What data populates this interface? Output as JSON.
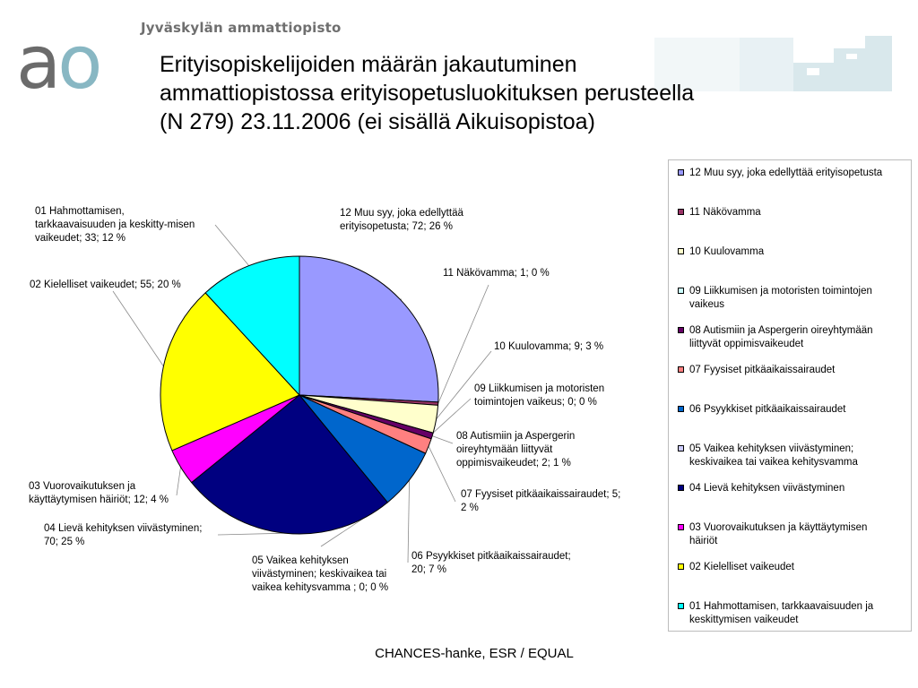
{
  "header": {
    "org_name": "Jyväskylän ammattiopisto",
    "logo_text": "ao",
    "title_lines": [
      "Erityisopiskelijoiden määrän jakautuminen",
      "ammattiopistossa erityisopetusluokituksen perusteella",
      "(N 279) 23.11.2006 (ei sisällä Aikuisopistoa)"
    ]
  },
  "footer": {
    "text": "CHANCES-hanke, ESR / EQUAL"
  },
  "colors": {
    "logo_a": "#6b6b6b",
    "logo_o": "#88b7c3",
    "deco": "#d9e8ec"
  },
  "chart_data": {
    "type": "pie",
    "title": "Erityisopiskelijoiden määrän jakautuminen ammattiopistossa erityisopetusluokituksen perusteella (N 279) 23.11.2006 (ei sisällä Aikuisopistoa)",
    "total": 279,
    "legend_position": "right",
    "slices": [
      {
        "name": "12 Muu syy, joka edellyttää erityisopetusta",
        "value": 72,
        "percent": 26,
        "color": "#9999ff",
        "label_lines": [
          "12 Muu syy, joka edellyttää",
          "erityisopetusta; 72; 26 %"
        ]
      },
      {
        "name": "11 Näkövamma",
        "value": 1,
        "percent": 0,
        "color": "#993366",
        "label_lines": [
          "11 Näkövamma; 1; 0 %"
        ]
      },
      {
        "name": "10 Kuulovamma",
        "value": 9,
        "percent": 3,
        "color": "#ffffcc",
        "label_lines": [
          "10 Kuulovamma; 9; 3 %"
        ]
      },
      {
        "name": "09 Liikkumisen ja motoristen toimintojen vaikeus",
        "value": 0,
        "percent": 0,
        "color": "#ccffff",
        "legend_lines": [
          "09 Liikkumisen ja motoristen toimintojen",
          "vaikeus"
        ],
        "label_lines": [
          "09 Liikkumisen ja motoristen",
          "toimintojen vaikeus; 0; 0 %"
        ]
      },
      {
        "name": "08 Autismiin ja Aspergerin oireyhtymään liittyvät oppimisvaikeudet",
        "value": 2,
        "percent": 1,
        "color": "#660066",
        "legend_lines": [
          "08 Autismiin ja Aspergerin oireyhtymään",
          "liittyvät oppimisvaikeudet"
        ],
        "label_lines": [
          "08 Autismiin ja Aspergerin",
          "oireyhtymään liittyvät",
          "oppimisvaikeudet; 2; 1 %"
        ]
      },
      {
        "name": "07 Fyysiset pitkäaikaissairaudet",
        "value": 5,
        "percent": 2,
        "color": "#ff8080",
        "label_lines": [
          "07 Fyysiset pitkäaikaissairaudet; 5;",
          "2 %"
        ]
      },
      {
        "name": "06 Psyykkiset pitkäaikaissairaudet",
        "value": 20,
        "percent": 7,
        "color": "#0066cc",
        "label_lines": [
          "06 Psyykkiset pitkäaikaissairaudet;",
          "20; 7 %"
        ]
      },
      {
        "name": "05 Vaikea kehityksen viivästyminen; keskivaikea tai vaikea kehitysvamma",
        "value": 0,
        "percent": 0,
        "color": "#ccccff",
        "legend_lines": [
          "05 Vaikea kehityksen viivästyminen;",
          "keskivaikea tai vaikea kehitysvamma"
        ],
        "label_lines": [
          "05 Vaikea kehityksen",
          "viivästyminen; keskivaikea tai",
          "vaikea kehitysvamma ; 0; 0 %"
        ]
      },
      {
        "name": "04 Lievä kehityksen viivästyminen",
        "value": 70,
        "percent": 25,
        "color": "#000080",
        "label_lines": [
          "04 Lievä kehityksen viivästyminen;",
          "70; 25 %"
        ]
      },
      {
        "name": "03 Vuorovaikutuksen ja käyttäytymisen häiriöt",
        "value": 12,
        "percent": 4,
        "color": "#ff00ff",
        "legend_lines": [
          "03 Vuorovaikutuksen ja käyttäytymisen",
          "häiriöt"
        ],
        "label_lines": [
          "03 Vuorovaikutuksen ja",
          "käyttäytymisen häiriöt; 12; 4 %"
        ]
      },
      {
        "name": "02 Kielelliset vaikeudet",
        "value": 55,
        "percent": 20,
        "color": "#ffff00",
        "label_lines": [
          "02 Kielelliset vaikeudet; 55; 20 %"
        ]
      },
      {
        "name": "01 Hahmottamisen, tarkkaavaisuuden ja keskittymisen vaikeudet",
        "value": 33,
        "percent": 12,
        "color": "#00ffff",
        "legend_lines": [
          "01 Hahmottamisen, tarkkaavaisuuden ja",
          "keskittymisen vaikeudet"
        ],
        "label_lines": [
          "01 Hahmottamisen,",
          "tarkkaavaisuuden ja keskitty-misen",
          "vaikeudet; 33; 12  %"
        ]
      }
    ]
  }
}
